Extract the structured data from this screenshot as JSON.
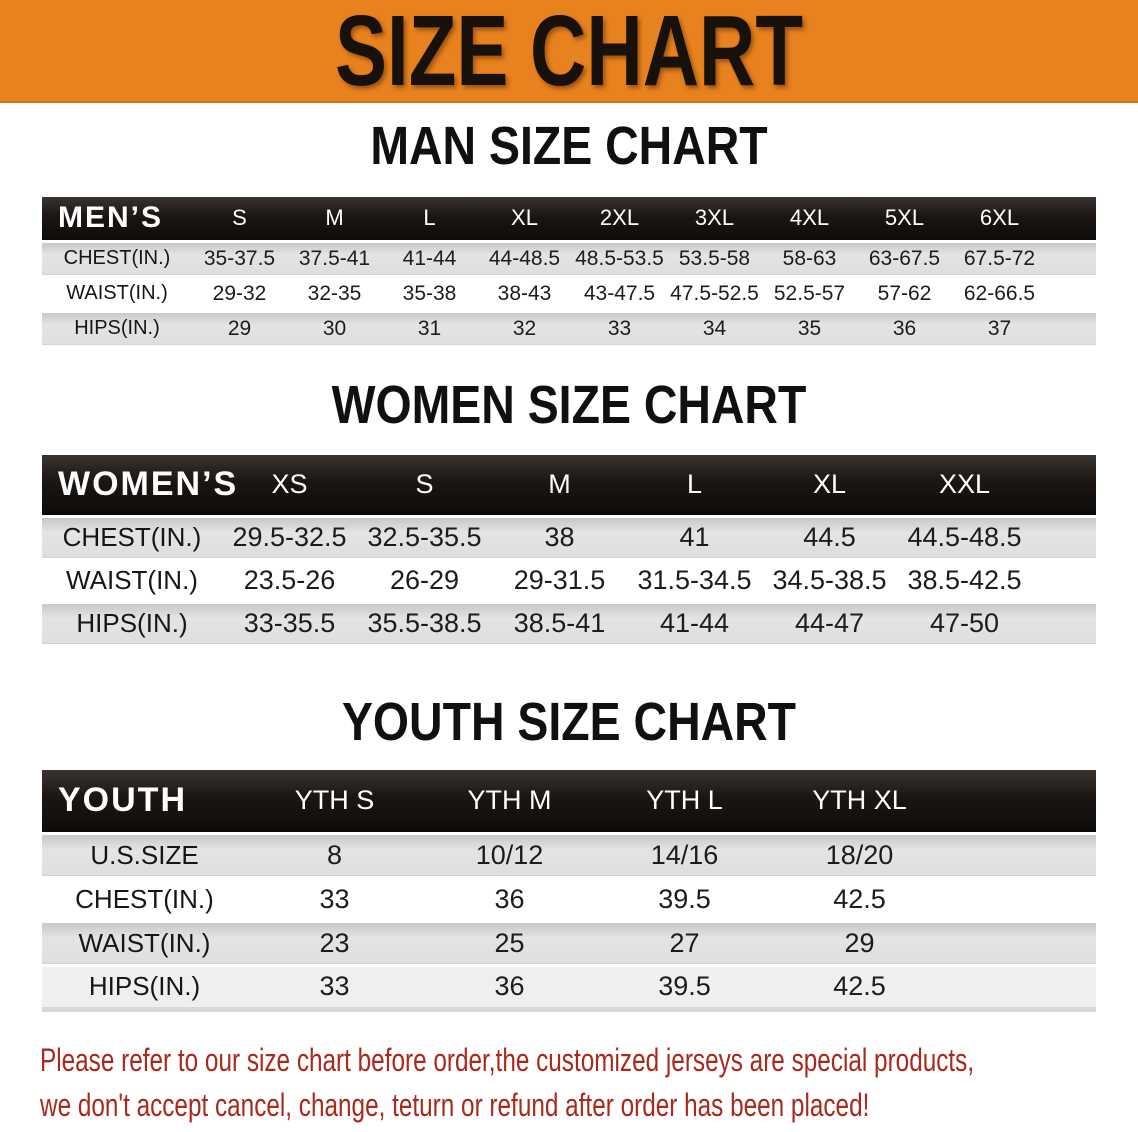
{
  "banner": {
    "title": "SIZE CHART",
    "background": "#e8821e",
    "text_color": "#17110a"
  },
  "sections": [
    {
      "id": "men",
      "title": "MAN SIZE CHART",
      "corner_label": "MEN’S",
      "columns": [
        "S",
        "M",
        "L",
        "XL",
        "2XL",
        "3XL",
        "4XL",
        "5XL",
        "6XL"
      ],
      "rows": [
        {
          "label": "CHEST(IN.)",
          "values": [
            "35-37.5",
            "37.5-41",
            "41-44",
            "44-48.5",
            "48.5-53.5",
            "53.5-58",
            "58-63",
            "63-67.5",
            "67.5-72"
          ]
        },
        {
          "label": "WAIST(IN.)",
          "values": [
            "29-32",
            "32-35",
            "35-38",
            "38-43",
            "43-47.5",
            "47.5-52.5",
            "52.5-57",
            "57-62",
            "62-66.5"
          ]
        },
        {
          "label": "HIPS(IN.)",
          "values": [
            "29",
            "30",
            "31",
            "32",
            "33",
            "34",
            "35",
            "36",
            "37"
          ]
        }
      ]
    },
    {
      "id": "women",
      "title": "WOMEN SIZE CHART",
      "corner_label": "WOMEN’S",
      "columns": [
        "XS",
        "S",
        "M",
        "L",
        "XL",
        "XXL"
      ],
      "rows": [
        {
          "label": "CHEST(IN.)",
          "values": [
            "29.5-32.5",
            "32.5-35.5",
            "38",
            "41",
            "44.5",
            "44.5-48.5"
          ]
        },
        {
          "label": "WAIST(IN.)",
          "values": [
            "23.5-26",
            "26-29",
            "29-31.5",
            "31.5-34.5",
            "34.5-38.5",
            "38.5-42.5"
          ]
        },
        {
          "label": "HIPS(IN.)",
          "values": [
            "33-35.5",
            "35.5-38.5",
            "38.5-41",
            "41-44",
            "44-47",
            "47-50"
          ]
        }
      ]
    },
    {
      "id": "youth",
      "title": "YOUTH SIZE CHART",
      "corner_label": "YOUTH",
      "columns": [
        "YTH S",
        "YTH M",
        "YTH L",
        "YTH XL"
      ],
      "rows": [
        {
          "label": "U.S.SIZE",
          "values": [
            "8",
            "10/12",
            "14/16",
            "18/20"
          ]
        },
        {
          "label": "CHEST(IN.)",
          "values": [
            "33",
            "36",
            "39.5",
            "42.5"
          ]
        },
        {
          "label": "WAIST(IN.)",
          "values": [
            "23",
            "25",
            "27",
            "29"
          ]
        },
        {
          "label": "HIPS(IN.)",
          "values": [
            "33",
            "36",
            "39.5",
            "42.5"
          ]
        }
      ]
    }
  ],
  "footer": {
    "lines": [
      "Please refer to our size chart before order,the customized jerseys are special products,",
      "we don't accept cancel, change, teturn or refund after order has been placed!"
    ],
    "color": "#a9291c"
  },
  "colors": {
    "banner_orange": "#e8821e",
    "header_black": "#1b1613",
    "row_gray": "#dedede",
    "row_white": "#ffffff",
    "notice_red": "#a9291c"
  }
}
